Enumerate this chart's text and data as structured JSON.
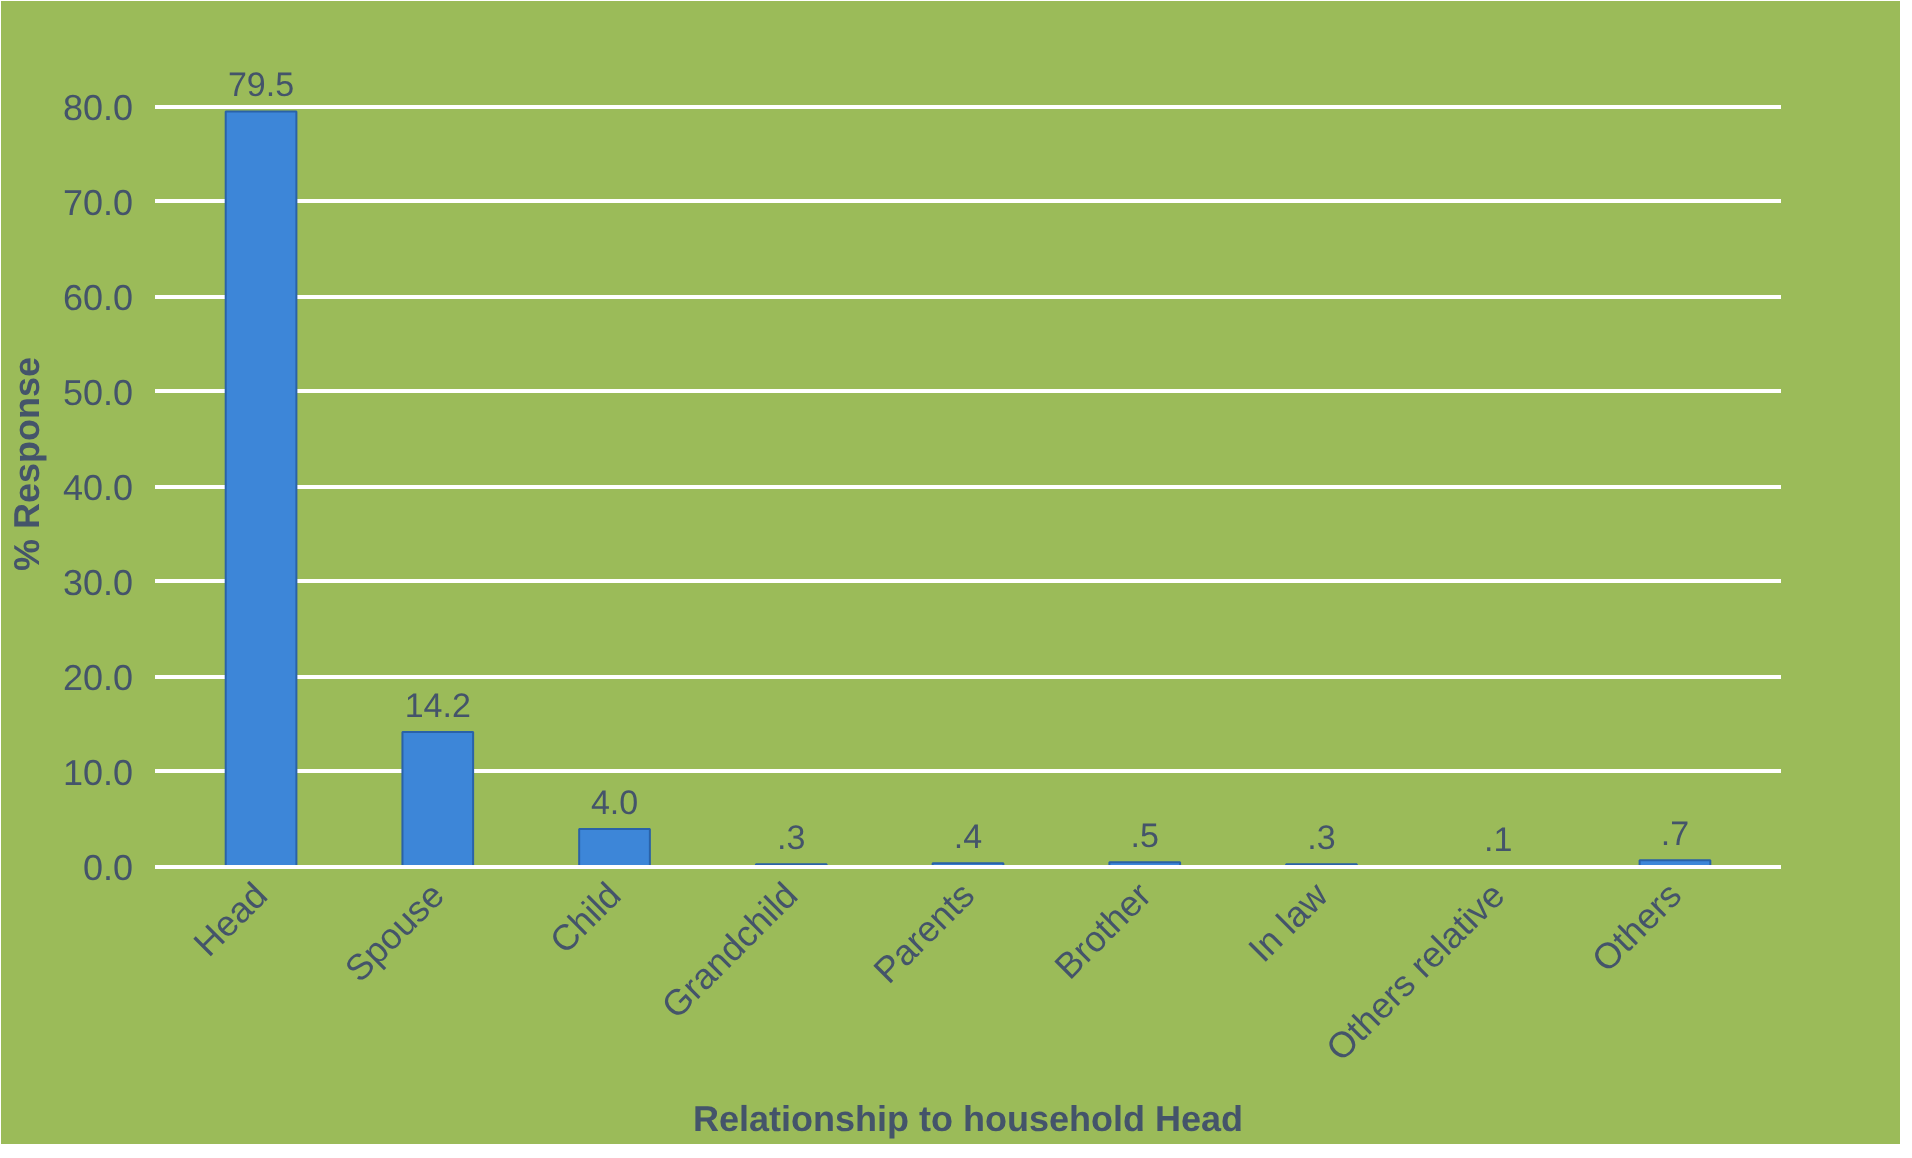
{
  "chart_data": {
    "type": "bar",
    "xlabel": "Relationship to household Head",
    "ylabel": "% Response",
    "categories": [
      "Head",
      "Spouse",
      "Child",
      "Grandchild",
      "Parents",
      "Brother",
      "In law",
      "Others relative",
      "Others"
    ],
    "values": [
      79.5,
      14.2,
      4.0,
      0.3,
      0.4,
      0.5,
      0.3,
      0.1,
      0.7
    ],
    "value_labels": [
      "79.5",
      "14.2",
      "4.0",
      ".3",
      ".4",
      ".5",
      ".3",
      ".1",
      ".7"
    ],
    "color": "#3d86d8",
    "ylim": [
      0,
      80
    ],
    "yticks": [
      {
        "value": 0,
        "label": "0.0"
      },
      {
        "value": 10,
        "label": "10.0"
      },
      {
        "value": 20,
        "label": "20.0"
      },
      {
        "value": 30,
        "label": "30.0"
      },
      {
        "value": 40,
        "label": "40.0"
      },
      {
        "value": 50,
        "label": "50.0"
      },
      {
        "value": 60,
        "label": "60.0"
      },
      {
        "value": 70,
        "label": "70.0"
      },
      {
        "value": 80,
        "label": "80.0"
      }
    ],
    "grid": "y"
  }
}
